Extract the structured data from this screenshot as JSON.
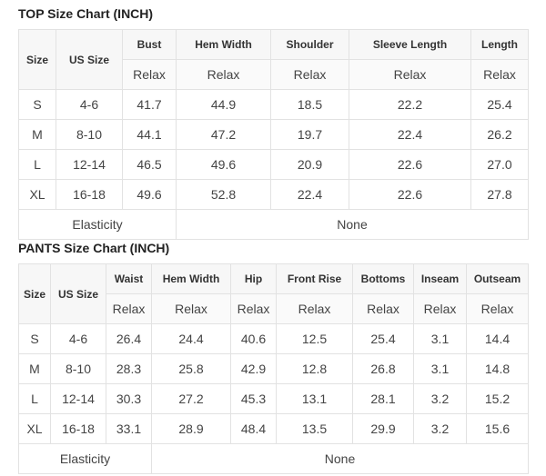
{
  "top": {
    "title": "TOP Size Chart (INCH)",
    "size_label": "Size",
    "us_size_label": "US Size",
    "columns": [
      "Bust",
      "Hem Width",
      "Shoulder",
      "Sleeve Length",
      "Length"
    ],
    "sub_label": "Relax",
    "rows": [
      [
        "S",
        "4-6",
        "41.7",
        "44.9",
        "18.5",
        "22.2",
        "25.4"
      ],
      [
        "M",
        "8-10",
        "44.1",
        "47.2",
        "19.7",
        "22.4",
        "26.2"
      ],
      [
        "L",
        "12-14",
        "46.5",
        "49.6",
        "20.9",
        "22.6",
        "27.0"
      ],
      [
        "XL",
        "16-18",
        "49.6",
        "52.8",
        "22.4",
        "22.6",
        "27.8"
      ]
    ],
    "elasticity_label": "Elasticity",
    "elasticity_value": "None"
  },
  "pants": {
    "title": "PANTS Size Chart (INCH)",
    "size_label": "Size",
    "us_size_label": "US Size",
    "columns": [
      "Waist",
      "Hem Width",
      "Hip",
      "Front Rise",
      "Bottoms",
      "Inseam",
      "Outseam"
    ],
    "sub_label": "Relax",
    "rows": [
      [
        "S",
        "4-6",
        "26.4",
        "24.4",
        "40.6",
        "12.5",
        "25.4",
        "3.1",
        "14.4"
      ],
      [
        "M",
        "8-10",
        "28.3",
        "25.8",
        "42.9",
        "12.8",
        "26.8",
        "3.1",
        "14.8"
      ],
      [
        "L",
        "12-14",
        "30.3",
        "27.2",
        "45.3",
        "13.1",
        "28.1",
        "3.2",
        "15.2"
      ],
      [
        "XL",
        "16-18",
        "33.1",
        "28.9",
        "48.4",
        "13.5",
        "29.9",
        "3.2",
        "15.6"
      ]
    ],
    "elasticity_label": "Elasticity",
    "elasticity_value": "None"
  }
}
